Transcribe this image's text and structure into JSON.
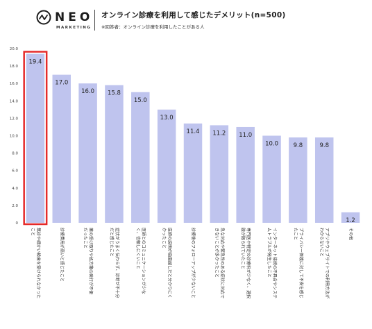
{
  "header": {
    "logo_word": "NEO",
    "logo_sub": "MARKETING",
    "title": "オンライン診療を利用して感じたデメリット(n=500)",
    "subtitle": "※回答者：オンライン診療を利用したことがある人"
  },
  "colors": {
    "bar": "#bfc4ee",
    "highlight": "#e52a2a"
  },
  "chart_data": {
    "type": "bar",
    "title": "オンライン診療を利用して感じたデメリット(n=500)",
    "ylim": [
      0,
      20
    ],
    "yticks": [
      "0",
      "2.0",
      "4.0",
      "6.0",
      "8.0",
      "10.0",
      "12.0",
      "14.0",
      "16.0",
      "18.0",
      "20.0"
    ],
    "grid": false,
    "categories": [
      [
        "無診や細かい検査を受けられなかった",
        "こと"
      ],
      [
        "診療費用が高いと感じたこと"
      ],
      [
        "薬の受け取りや処方箋の発行が不便",
        "だったこと"
      ],
      [
        "症状がうまく伝わらず、診断が不十分",
        "だと感じたこと"
      ],
      [
        "医師とのコミュニケーションが少な",
        "く、信頼しにくいこと"
      ],
      [
        "医師の説明が画面越しだと分かりにく",
        "かったこと"
      ],
      [
        "診療後のフォローアップが少ないこと"
      ],
      [
        "急な対応や緊急性のある症状に対応で",
        "きないことが多かったこと"
      ],
      [
        "専門医や特定の診療科が少なく、選択",
        "肢が限られていたこと"
      ],
      [
        "インターネット接続の不具合やシステ",
        "ムトラブルが発生したこと"
      ],
      [
        "プライバシー保護に対して不安を感じ",
        "たこと"
      ],
      [
        "アプリやウェブサイトでの利用方法が",
        "わからないこと"
      ],
      [
        "その他"
      ]
    ],
    "values": [
      19.4,
      17.0,
      16.0,
      15.8,
      15.0,
      13.0,
      11.4,
      11.2,
      11.0,
      10.0,
      9.8,
      9.8,
      1.2
    ],
    "data_labels": [
      "19.4",
      "17.0",
      "16.0",
      "15.8",
      "15.0",
      "13.0",
      "11.4",
      "11.2",
      "11.0",
      "10.0",
      "9.8",
      "9.8",
      "1.2"
    ],
    "highlighted_index": 0
  }
}
